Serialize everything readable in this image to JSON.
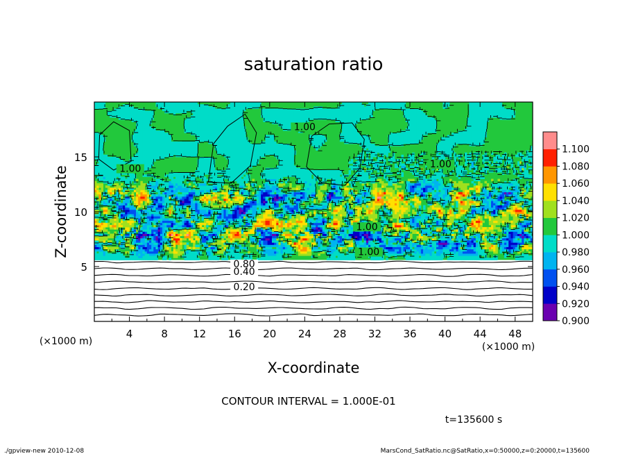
{
  "chart_data": {
    "type": "heatmap",
    "title": "saturation ratio",
    "xlabel": "X-coordinate",
    "ylabel": "Z-coordinate",
    "x_unit": "(×1000 m)",
    "y_unit": "(×1000 m)",
    "xlim": [
      0,
      50
    ],
    "ylim": [
      0,
      20
    ],
    "x_ticks": [
      4,
      8,
      12,
      16,
      20,
      24,
      28,
      32,
      36,
      40,
      44,
      48
    ],
    "y_ticks": [
      5,
      10,
      15
    ],
    "colorbar": {
      "levels": [
        0.9,
        0.92,
        0.94,
        0.96,
        0.98,
        1.0,
        1.02,
        1.04,
        1.06,
        1.08,
        1.1
      ],
      "labels": [
        "0.900",
        "0.920",
        "0.940",
        "0.960",
        "0.980",
        "1.000",
        "1.020",
        "1.040",
        "1.060",
        "1.080",
        "1.100"
      ],
      "colors": [
        "#6a00b0",
        "#0000c8",
        "#0050f0",
        "#00b4f0",
        "#00dcc8",
        "#22c83c",
        "#a0e01e",
        "#ffe000",
        "#ff9600",
        "#ff2000",
        "#ff8c8c"
      ]
    },
    "contour_labels": [
      {
        "text": "1.00",
        "x": 24.0,
        "z": 17.5
      },
      {
        "text": "1.00",
        "x": 39.5,
        "z": 14.1
      },
      {
        "text": "1.00",
        "x": 4.1,
        "z": 13.7
      },
      {
        "text": "1.00",
        "x": 31.1,
        "z": 8.4
      },
      {
        "text": "1.00",
        "x": 31.3,
        "z": 6.1
      },
      {
        "text": "0.80",
        "x": 17.1,
        "z": 5.0
      },
      {
        "text": "0.40",
        "x": 17.1,
        "z": 4.3
      },
      {
        "text": "0.20",
        "x": 17.1,
        "z": 2.9
      }
    ],
    "contour_interval": "CONTOUR INTERVAL = 1.000E-01",
    "time_label": "t=135600 s"
  },
  "footer": {
    "left": "./gpview-new   2010-12-08",
    "right": "MarsCond_SatRatio.nc@SatRatio,x=0:50000,z=0:20000,t=135600"
  }
}
